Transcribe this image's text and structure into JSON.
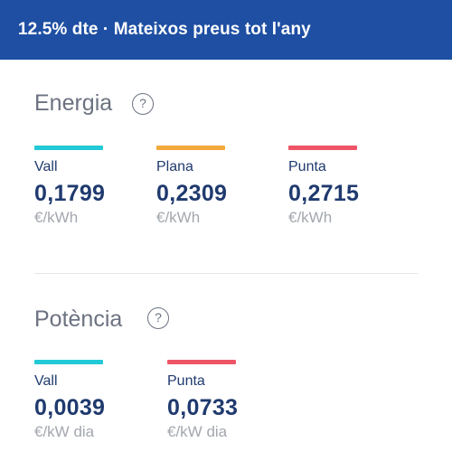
{
  "banner": {
    "title": "12.5% dte · Mateixos preus tot l'any"
  },
  "energy": {
    "title": "Energia",
    "help": "?",
    "tariffs": [
      {
        "label": "Vall",
        "value": "0,1799",
        "unit": "€/kWh",
        "color": "#22c9d6"
      },
      {
        "label": "Plana",
        "value": "0,2309",
        "unit": "€/kWh",
        "color": "#f2a93b"
      },
      {
        "label": "Punta",
        "value": "0,2715",
        "unit": "€/kWh",
        "color": "#ee5566"
      }
    ]
  },
  "power": {
    "title": "Potència",
    "help": "?",
    "tariffs": [
      {
        "label": "Vall",
        "value": "0,0039",
        "unit": "€/kW dia",
        "color": "#22c9d6"
      },
      {
        "label": "Punta",
        "value": "0,0733",
        "unit": "€/kW dia",
        "color": "#ee5566"
      }
    ]
  }
}
